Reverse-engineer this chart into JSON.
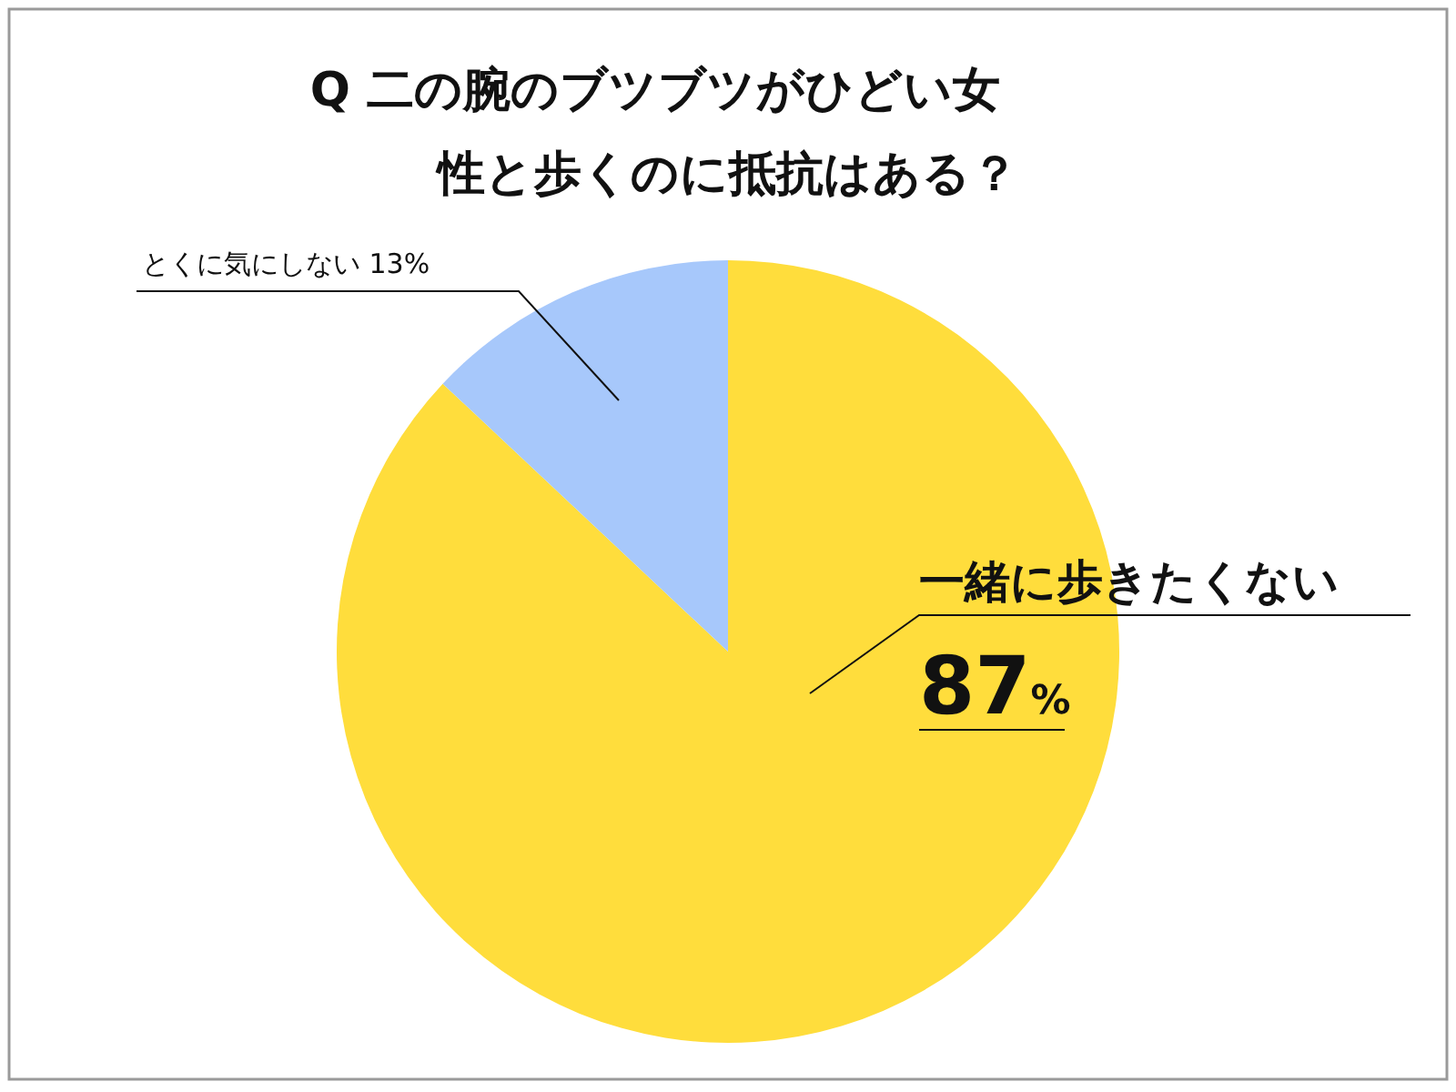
{
  "chart_data": {
    "type": "pie",
    "title": "Q 二の腕のブツブツがひどい女性と歩くのに抵抗はある？",
    "categories": [
      "一緒に歩きたくない",
      "とくに気にしない"
    ],
    "values": [
      87,
      13
    ],
    "colors": [
      "#ffdd3c",
      "#a7c8fb"
    ],
    "value_labels": [
      "87%",
      "13%"
    ]
  }
}
